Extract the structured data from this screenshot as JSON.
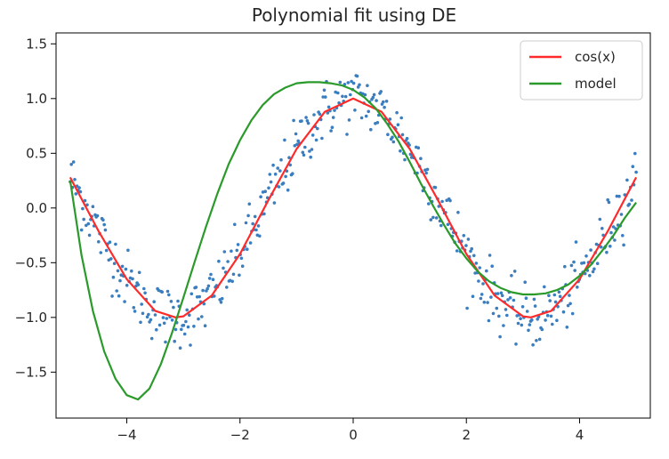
{
  "chart_data": {
    "type": "scatter",
    "title": "Polynomial fit using DE",
    "xlabel": "",
    "ylabel": "",
    "xlim": [
      -5.25,
      5.25
    ],
    "ylim": [
      -1.92,
      1.6
    ],
    "xticks": [
      -4,
      -2,
      0,
      2,
      4
    ],
    "yticks": [
      -1.5,
      -1.0,
      -0.5,
      0.0,
      0.5,
      1.0,
      1.5
    ],
    "xtick_labels": [
      "−4",
      "−2",
      "0",
      "2",
      "4"
    ],
    "ytick_labels": [
      "−1.5",
      "−1.0",
      "−0.5",
      "0.0",
      "0.5",
      "1.0",
      "1.5"
    ],
    "grid": false,
    "legend_position": "top-right",
    "legend": [
      {
        "name": "cos(x)",
        "color": "#ff2a2a"
      },
      {
        "name": "model",
        "color": "#2a9a2a"
      }
    ],
    "series": [
      {
        "kind": "line",
        "color": "#ff2a2a",
        "x": [
          -5.0,
          -4.5,
          -4.0,
          -3.5,
          -3.14,
          -3.0,
          -2.5,
          -2.0,
          -1.5,
          -1.0,
          -0.5,
          0.0,
          0.5,
          1.0,
          1.5,
          2.0,
          2.5,
          3.0,
          3.14,
          3.5,
          4.0,
          4.5,
          5.0
        ],
        "y": [
          0.28,
          -0.21,
          -0.65,
          -0.94,
          -1.0,
          -0.99,
          -0.8,
          -0.42,
          0.07,
          0.54,
          0.88,
          1.0,
          0.88,
          0.54,
          0.07,
          -0.42,
          -0.8,
          -0.99,
          -1.0,
          -0.94,
          -0.65,
          -0.21,
          0.28
        ]
      },
      {
        "kind": "line",
        "color": "#2a9a2a",
        "x": [
          -5.0,
          -4.8,
          -4.6,
          -4.4,
          -4.2,
          -4.0,
          -3.8,
          -3.6,
          -3.4,
          -3.2,
          -3.0,
          -2.8,
          -2.6,
          -2.4,
          -2.2,
          -2.0,
          -1.8,
          -1.6,
          -1.4,
          -1.2,
          -1.0,
          -0.8,
          -0.6,
          -0.4,
          -0.2,
          0.0,
          0.2,
          0.4,
          0.6,
          0.8,
          1.0,
          1.2,
          1.4,
          1.6,
          1.8,
          2.0,
          2.2,
          2.4,
          2.6,
          2.8,
          3.0,
          3.2,
          3.4,
          3.6,
          3.8,
          4.0,
          4.2,
          4.4,
          4.6,
          4.8,
          5.0
        ],
        "y": [
          0.25,
          -0.43,
          -0.94,
          -1.31,
          -1.56,
          -1.71,
          -1.75,
          -1.65,
          -1.43,
          -1.14,
          -0.82,
          -0.49,
          -0.17,
          0.13,
          0.4,
          0.62,
          0.8,
          0.94,
          1.04,
          1.1,
          1.14,
          1.15,
          1.15,
          1.14,
          1.12,
          1.08,
          1.01,
          0.91,
          0.77,
          0.61,
          0.42,
          0.22,
          0.03,
          -0.15,
          -0.32,
          -0.46,
          -0.58,
          -0.67,
          -0.73,
          -0.77,
          -0.79,
          -0.79,
          -0.78,
          -0.75,
          -0.7,
          -0.62,
          -0.52,
          -0.39,
          -0.25,
          -0.09,
          0.05
        ]
      },
      {
        "kind": "scatter",
        "color": "#3a7ebf",
        "count": 500,
        "x_range": [
          -5.0,
          5.0
        ],
        "noise_sd": 0.14,
        "outlier_max": 1.41
      }
    ]
  }
}
